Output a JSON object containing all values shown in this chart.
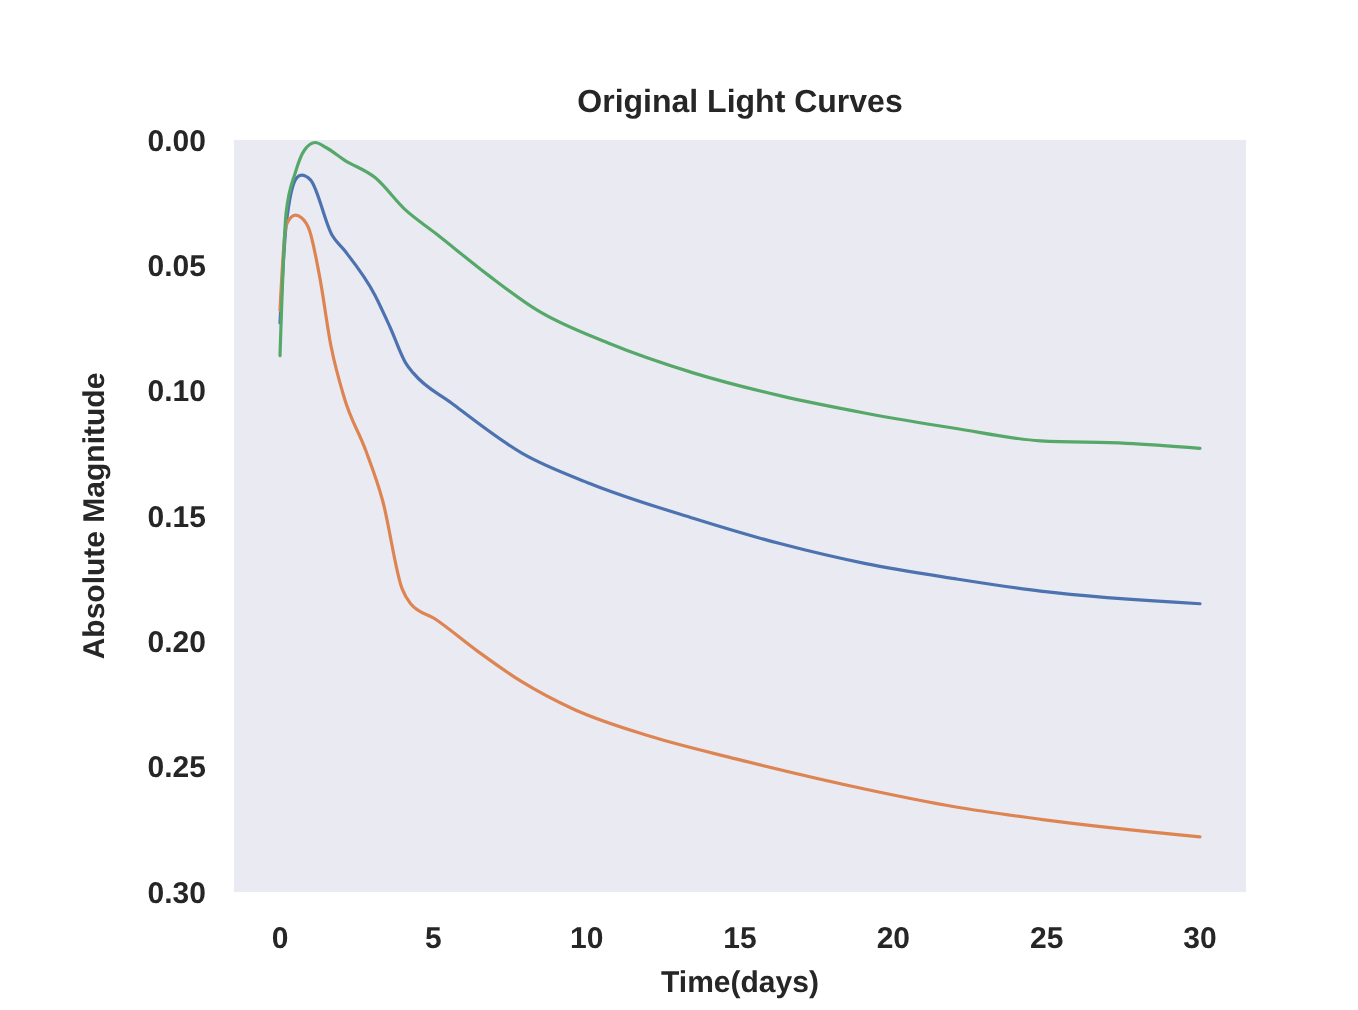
{
  "chart_data": {
    "type": "line",
    "title": "Original Light Curves",
    "xlabel": "Time(days)",
    "ylabel": "Absolute Magnitude",
    "xlim": [
      -1.5,
      31.5
    ],
    "ylim": [
      0.3,
      0
    ],
    "xticks": [
      0,
      5,
      10,
      15,
      20,
      25,
      30
    ],
    "yticks": [
      {
        "value": 0,
        "label": "0.00"
      },
      {
        "value": 0.05,
        "label": "0.05"
      },
      {
        "value": 0.1,
        "label": "0.10"
      },
      {
        "value": 0.15,
        "label": "0.15"
      },
      {
        "value": 0.2,
        "label": "0.20"
      },
      {
        "value": 0.25,
        "label": "0.25"
      },
      {
        "value": 0.3,
        "label": "0.30"
      }
    ],
    "grid": false,
    "line_style": "solid",
    "marker": "none",
    "series": [
      {
        "color": "#4c72b0",
        "x": [
          0,
          0.2,
          0.55,
          0.7,
          1,
          1.7,
          2.1,
          3.1,
          3.6,
          4.1,
          4.35,
          5.6,
          7.9,
          10.1,
          13.5,
          16.3,
          19.1,
          22,
          24.8,
          30
        ],
        "values": [
          0.073,
          0.034,
          0.015,
          0.014,
          0.016,
          0.038,
          0.044,
          0.062,
          0.075,
          0.089,
          0.093,
          0.105,
          0.125,
          0.137,
          0.151,
          0.161,
          0.169,
          0.175,
          0.18,
          0.185
        ]
      },
      {
        "color": "#dd8452",
        "x": [
          0,
          0.2,
          0.5,
          0.7,
          0.96,
          1.3,
          1.66,
          2.1,
          2.8,
          3.35,
          3.98,
          4.26,
          5.05,
          6.45,
          7.87,
          9.56,
          12.1,
          14.9,
          19.1,
          22,
          24.8,
          30
        ],
        "values": [
          0.068,
          0.034,
          0.03,
          0.031,
          0.036,
          0.055,
          0.082,
          0.103,
          0.124,
          0.144,
          0.179,
          0.185,
          0.191,
          0.204,
          0.216,
          0.227,
          0.238,
          0.247,
          0.259,
          0.266,
          0.271,
          0.278
        ]
      },
      {
        "color": "#55a868",
        "x": [
          0,
          0.2,
          0.5,
          0.8,
          1.15,
          1.5,
          2.1,
          3.1,
          4.1,
          5.05,
          6.8,
          8.4,
          10.7,
          13.5,
          16.3,
          19.1,
          22,
          24.8,
          27.6,
          30
        ],
        "values": [
          0.086,
          0.029,
          0.013,
          0.004,
          0.001,
          0.003,
          0.008,
          0.015,
          0.028,
          0.037,
          0.054,
          0.068,
          0.081,
          0.093,
          0.102,
          0.109,
          0.115,
          0.12,
          0.121,
          0.123
        ]
      }
    ]
  }
}
